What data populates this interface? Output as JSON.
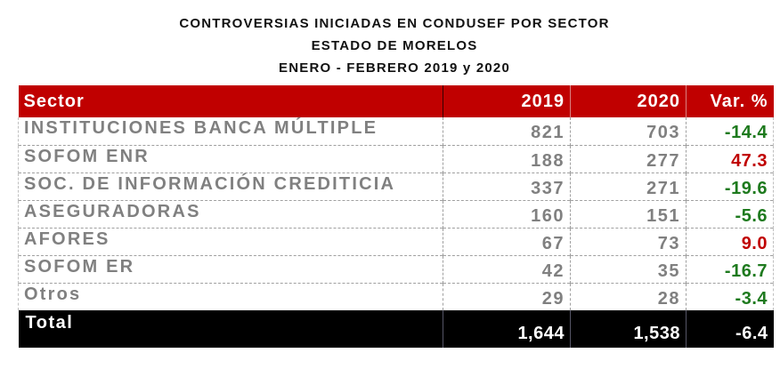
{
  "titles": {
    "line1": "CONTROVERSIAS INICIADAS EN CONDUSEF POR SECTOR",
    "line2": "ESTADO DE MORELOS",
    "line3": "ENERO - FEBRERO 2019 y 2020"
  },
  "colors": {
    "header_bg": "#c00000",
    "total_bg": "#000000",
    "decrease": "#1e7a1e",
    "increase": "#c00000",
    "value_text": "#808080"
  },
  "table": {
    "headers": {
      "sector": "Sector",
      "y2019": "2019",
      "y2020": "2020",
      "var": "Var. %"
    },
    "rows": [
      {
        "sector": "INSTITUCIONES BANCA MÚLTIPLE",
        "y2019": "821",
        "y2020": "703",
        "var": "-14.4",
        "trend": "decrease"
      },
      {
        "sector": "SOFOM ENR",
        "y2019": "188",
        "y2020": "277",
        "var": "47.3",
        "trend": "increase"
      },
      {
        "sector": "SOC. DE INFORMACIÓN CREDITICIA",
        "y2019": "337",
        "y2020": "271",
        "var": "-19.6",
        "trend": "decrease"
      },
      {
        "sector": "ASEGURADORAS",
        "y2019": "160",
        "y2020": "151",
        "var": "-5.6",
        "trend": "decrease"
      },
      {
        "sector": "AFORES",
        "y2019": "67",
        "y2020": "73",
        "var": "9.0",
        "trend": "increase"
      },
      {
        "sector": "SOFOM ER",
        "y2019": "42",
        "y2020": "35",
        "var": "-16.7",
        "trend": "decrease"
      },
      {
        "sector": "Otros",
        "y2019": "29",
        "y2020": "28",
        "var": "-3.4",
        "trend": "decrease"
      }
    ],
    "total": {
      "label": "Total",
      "y2019": "1,644",
      "y2020": "1,538",
      "var": "-6.4"
    }
  }
}
